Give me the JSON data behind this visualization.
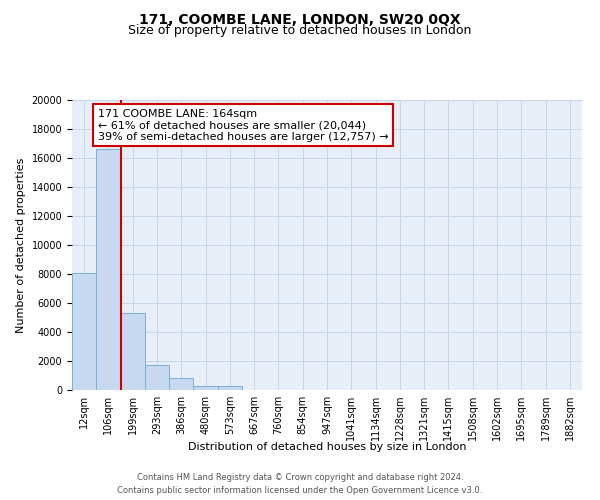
{
  "title": "171, COOMBE LANE, LONDON, SW20 0QX",
  "subtitle": "Size of property relative to detached houses in London",
  "xlabel": "Distribution of detached houses by size in London",
  "ylabel": "Number of detached properties",
  "bar_labels": [
    "12sqm",
    "106sqm",
    "199sqm",
    "293sqm",
    "386sqm",
    "480sqm",
    "573sqm",
    "667sqm",
    "760sqm",
    "854sqm",
    "947sqm",
    "1041sqm",
    "1134sqm",
    "1228sqm",
    "1321sqm",
    "1415sqm",
    "1508sqm",
    "1602sqm",
    "1695sqm",
    "1789sqm",
    "1882sqm"
  ],
  "bar_values": [
    8100,
    16600,
    5300,
    1750,
    800,
    300,
    250,
    0,
    0,
    0,
    0,
    0,
    0,
    0,
    0,
    0,
    0,
    0,
    0,
    0,
    0
  ],
  "bar_color": "#c6d9f0",
  "bar_edge_color": "#7bafd4",
  "vline_x_idx": 2,
  "vline_color": "#cc0000",
  "ylim": [
    0,
    20000
  ],
  "yticks": [
    0,
    2000,
    4000,
    6000,
    8000,
    10000,
    12000,
    14000,
    16000,
    18000,
    20000
  ],
  "annotation_line1": "171 COOMBE LANE: 164sqm",
  "annotation_line2": "← 61% of detached houses are smaller (20,044)",
  "annotation_line3": "39% of semi-detached houses are larger (12,757) →",
  "grid_color": "#c8d4e8",
  "bg_color": "#e8eef8",
  "footnote": "Contains HM Land Registry data © Crown copyright and database right 2024.\nContains public sector information licensed under the Open Government Licence v3.0.",
  "title_fontsize": 10,
  "subtitle_fontsize": 9,
  "xlabel_fontsize": 8,
  "ylabel_fontsize": 8,
  "tick_fontsize": 7,
  "annotation_fontsize": 8,
  "footnote_fontsize": 6
}
